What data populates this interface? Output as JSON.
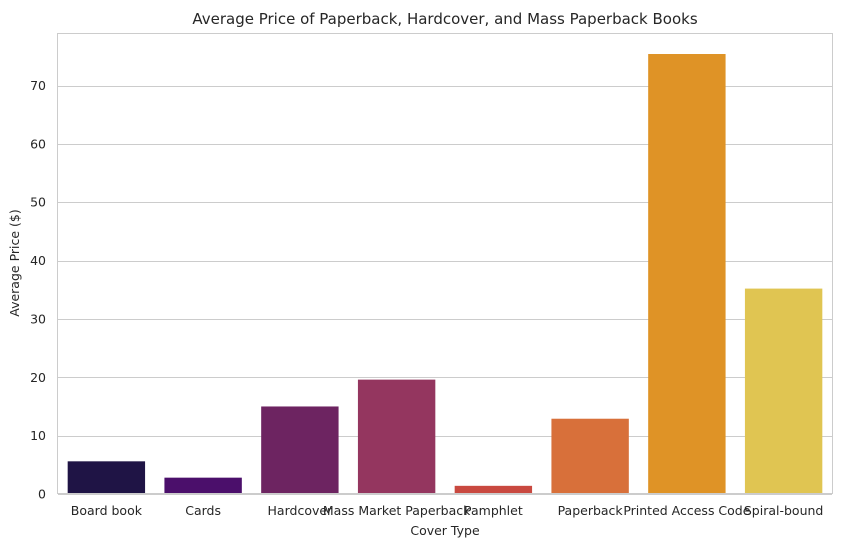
{
  "chart_data": {
    "type": "bar",
    "title": "Average Price of Paperback, Hardcover, and Mass Paperback Books",
    "xlabel": "Cover Type",
    "ylabel": "Average Price ($)",
    "categories": [
      "Board book",
      "Cards",
      "Hardcover",
      "Mass Market Paperback",
      "Pamphlet",
      "Paperback",
      "Printed Access Code",
      "Spiral-bound"
    ],
    "values": [
      5.6,
      2.8,
      15.0,
      19.6,
      1.4,
      12.9,
      75.4,
      35.2
    ],
    "colors": [
      "#1f1445",
      "#4b0f6b",
      "#6d2461",
      "#94365f",
      "#c94940",
      "#d8703a",
      "#df9326",
      "#e0c552"
    ],
    "ylim": [
      0,
      79
    ],
    "yticks": [
      0,
      10,
      20,
      30,
      40,
      50,
      60,
      70
    ],
    "grid": "horizontal",
    "legend": "none"
  }
}
